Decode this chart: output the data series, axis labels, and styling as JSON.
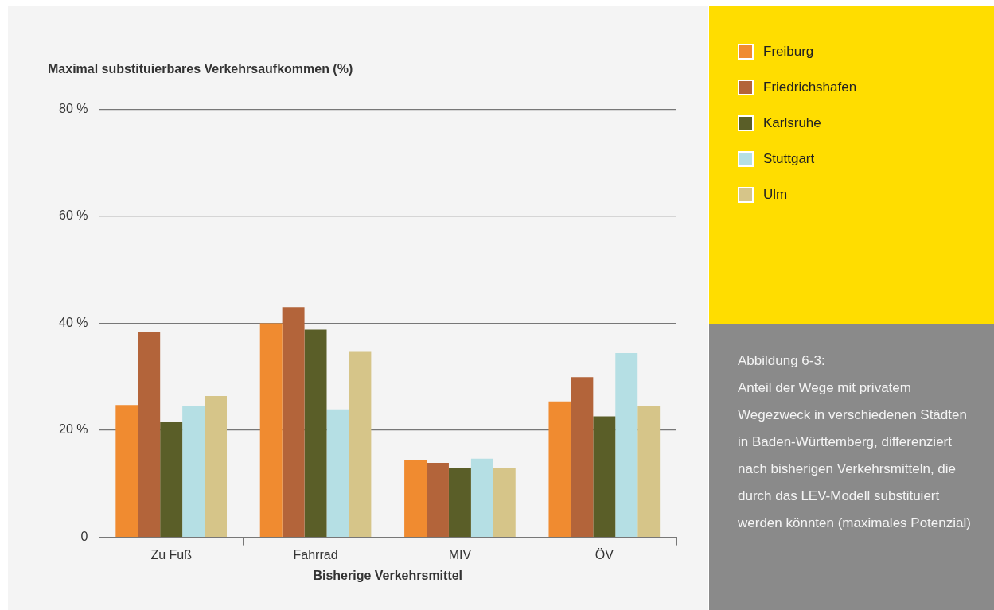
{
  "chart_data": {
    "type": "bar",
    "ylabel": "Maximal substituierbares Verkehrsaufkommen (%)",
    "xlabel": "Bisherige Verkehrsmittel",
    "categories": [
      "Zu Fuß",
      "Fahrrad",
      "MIV",
      "ÖV"
    ],
    "series": [
      {
        "name": "Freiburg",
        "color": "#f08b30",
        "values": [
          24.7,
          40,
          14.5,
          25.4
        ]
      },
      {
        "name": "Friedrichshafen",
        "color": "#b3643a",
        "values": [
          38.3,
          43,
          13.9,
          29.9
        ]
      },
      {
        "name": "Karlsruhe",
        "color": "#5a5e28",
        "values": [
          21.5,
          38.8,
          13,
          22.6
        ]
      },
      {
        "name": "Stuttgart",
        "color": "#b5dfe4",
        "values": [
          24.5,
          23.9,
          14.7,
          34.4
        ]
      },
      {
        "name": "Ulm",
        "color": "#d6c589",
        "values": [
          26.4,
          34.8,
          13,
          24.5
        ]
      }
    ],
    "ylim": [
      0,
      80
    ],
    "yticks": [
      0,
      {
        "value": 20,
        "label": "20 %"
      },
      {
        "value": 40,
        "label": "40 %"
      },
      {
        "value": 60,
        "label": "60 %"
      },
      {
        "value": 80,
        "label": "80 %"
      }
    ],
    "grid": "y",
    "legend": "right",
    "annotations": [
      "Abbildung 6-3:",
      "Anteil der Wege mit privatem Wegezweck in verschiedenen Städten in Baden-Württemberg, differenziert nach bisherigen Verkehrsmitteln, die durch das LEV-Modell substituiert werden könnten (maximales Potenzial)"
    ]
  }
}
